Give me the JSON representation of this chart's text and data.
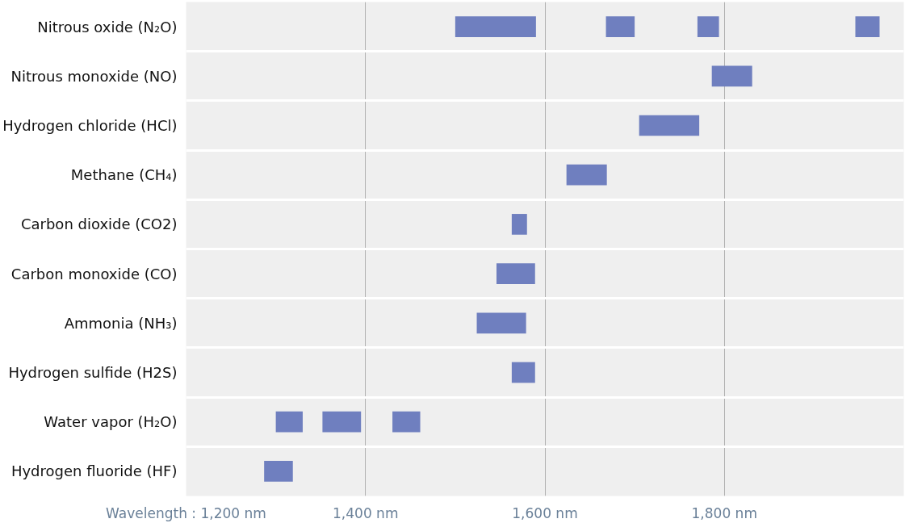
{
  "chart_data": {
    "type": "bar",
    "orientation": "horizontal",
    "categories": [
      "Nitrous oxide (N₂O)",
      "Nitrous monoxide (NO)",
      "Hydrogen chloride (HCl)",
      "Methane (CH₄)",
      "Carbon dioxide (CO2)",
      "Carbon monoxide (CO)",
      "Ammonia (NH₃)",
      "Hydrogen sulfide (H2S)",
      "Water vapor (H₂O)",
      "Hydrogen fluoride (HF)"
    ],
    "series": [
      {
        "color": "#6f7fbf",
        "base": [
          1500,
          1786,
          1705,
          1624,
          1563,
          1546,
          1524,
          1563,
          1300,
          1287
        ],
        "values": [
          90,
          45,
          67,
          45,
          17,
          43,
          55,
          26,
          30,
          32
        ]
      },
      {
        "color": "#6f7fbf",
        "base": [
          1668,
          null,
          null,
          null,
          null,
          null,
          null,
          null,
          1352,
          null
        ],
        "values": [
          32,
          null,
          null,
          null,
          null,
          null,
          null,
          null,
          43,
          null
        ]
      },
      {
        "color": "#6f7fbf",
        "base": [
          1770,
          null,
          null,
          null,
          null,
          null,
          null,
          null,
          1430,
          null
        ],
        "values": [
          24,
          null,
          null,
          null,
          null,
          null,
          null,
          null,
          31,
          null
        ]
      },
      {
        "color": "#6f7fbf",
        "base": [
          1946,
          null,
          null,
          null,
          null,
          null,
          null,
          null,
          null,
          null
        ],
        "values": [
          27,
          null,
          null,
          null,
          null,
          null,
          null,
          null,
          null,
          null
        ]
      }
    ],
    "xlim": [
      1200,
      2000
    ],
    "xticks": [
      {
        "value": 1200,
        "label": "Wavelength : 1,200 nm"
      },
      {
        "value": 1400,
        "label": "1,400 nm"
      },
      {
        "value": 1600,
        "label": "1,600 nm"
      },
      {
        "value": 1800,
        "label": "1,800 nm"
      }
    ],
    "grid": "x"
  }
}
